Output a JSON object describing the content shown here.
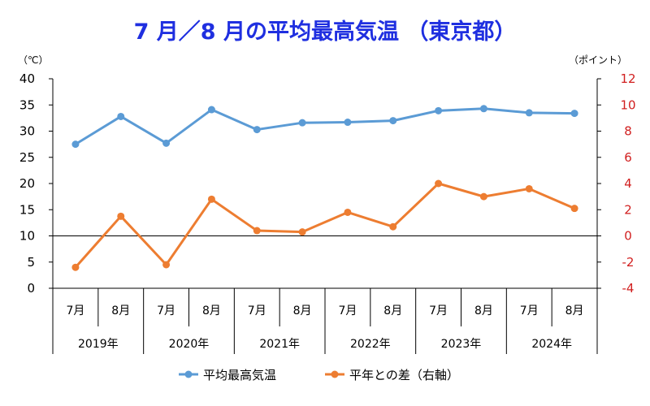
{
  "chart_data": {
    "type": "line",
    "title": "7 月／8 月の平均最高気温 （東京都）",
    "left_unit": "（℃）",
    "right_unit": "（ポイント）",
    "left_axis": {
      "ylim": [
        0,
        40
      ],
      "ticks": [
        "0",
        "5",
        "10",
        "15",
        "20",
        "25",
        "30",
        "35",
        "40"
      ]
    },
    "right_axis": {
      "ylim": [
        -4,
        12
      ],
      "ticks": [
        "-4",
        "-2",
        "0",
        "2",
        "4",
        "6",
        "8",
        "10",
        "12"
      ]
    },
    "categories": [
      "7月",
      "8月",
      "7月",
      "8月",
      "7月",
      "8月",
      "7月",
      "8月",
      "7月",
      "8月",
      "7月",
      "8月"
    ],
    "years": [
      "2019年",
      "2020年",
      "2021年",
      "2022年",
      "2023年",
      "2024年"
    ],
    "series": [
      {
        "name": "平均最高気温",
        "axis": "left",
        "color": "#5b9bd5",
        "values": [
          27.5,
          32.8,
          27.7,
          34.1,
          30.3,
          31.6,
          31.7,
          32.0,
          33.9,
          34.3,
          33.5,
          33.4
        ]
      },
      {
        "name": "平年との差（右軸）",
        "axis": "right",
        "color": "#ed7d31",
        "values": [
          -2.4,
          1.5,
          -2.2,
          2.8,
          0.4,
          0.3,
          1.8,
          0.7,
          4.0,
          3.0,
          3.6,
          2.1
        ]
      }
    ],
    "legend_position": "bottom"
  }
}
